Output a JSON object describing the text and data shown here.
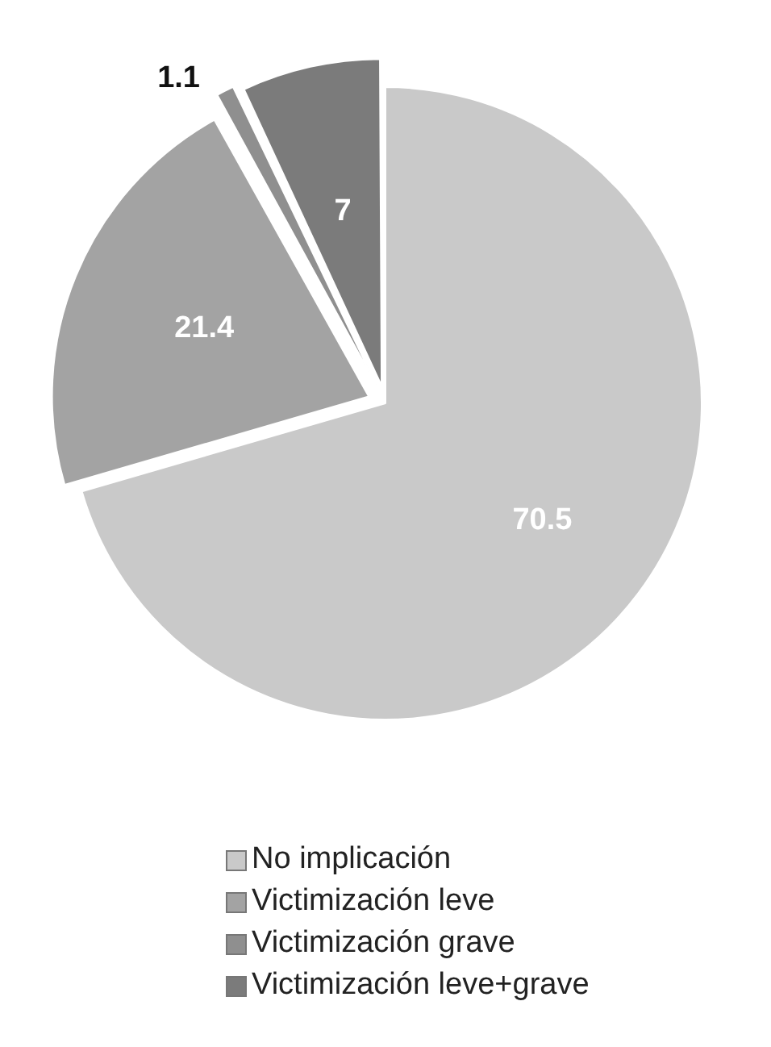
{
  "chart_data": {
    "type": "pie",
    "categories": [
      "No implicación",
      "Victimización leve",
      "Victimización grave",
      "Victimización leve+grave"
    ],
    "values": [
      70.5,
      21.4,
      1.1,
      7
    ],
    "colors": [
      "#c9c9c9",
      "#a3a3a3",
      "#8f8f8f",
      "#7b7b7b"
    ],
    "data_labels": true,
    "legend": "bottom"
  }
}
